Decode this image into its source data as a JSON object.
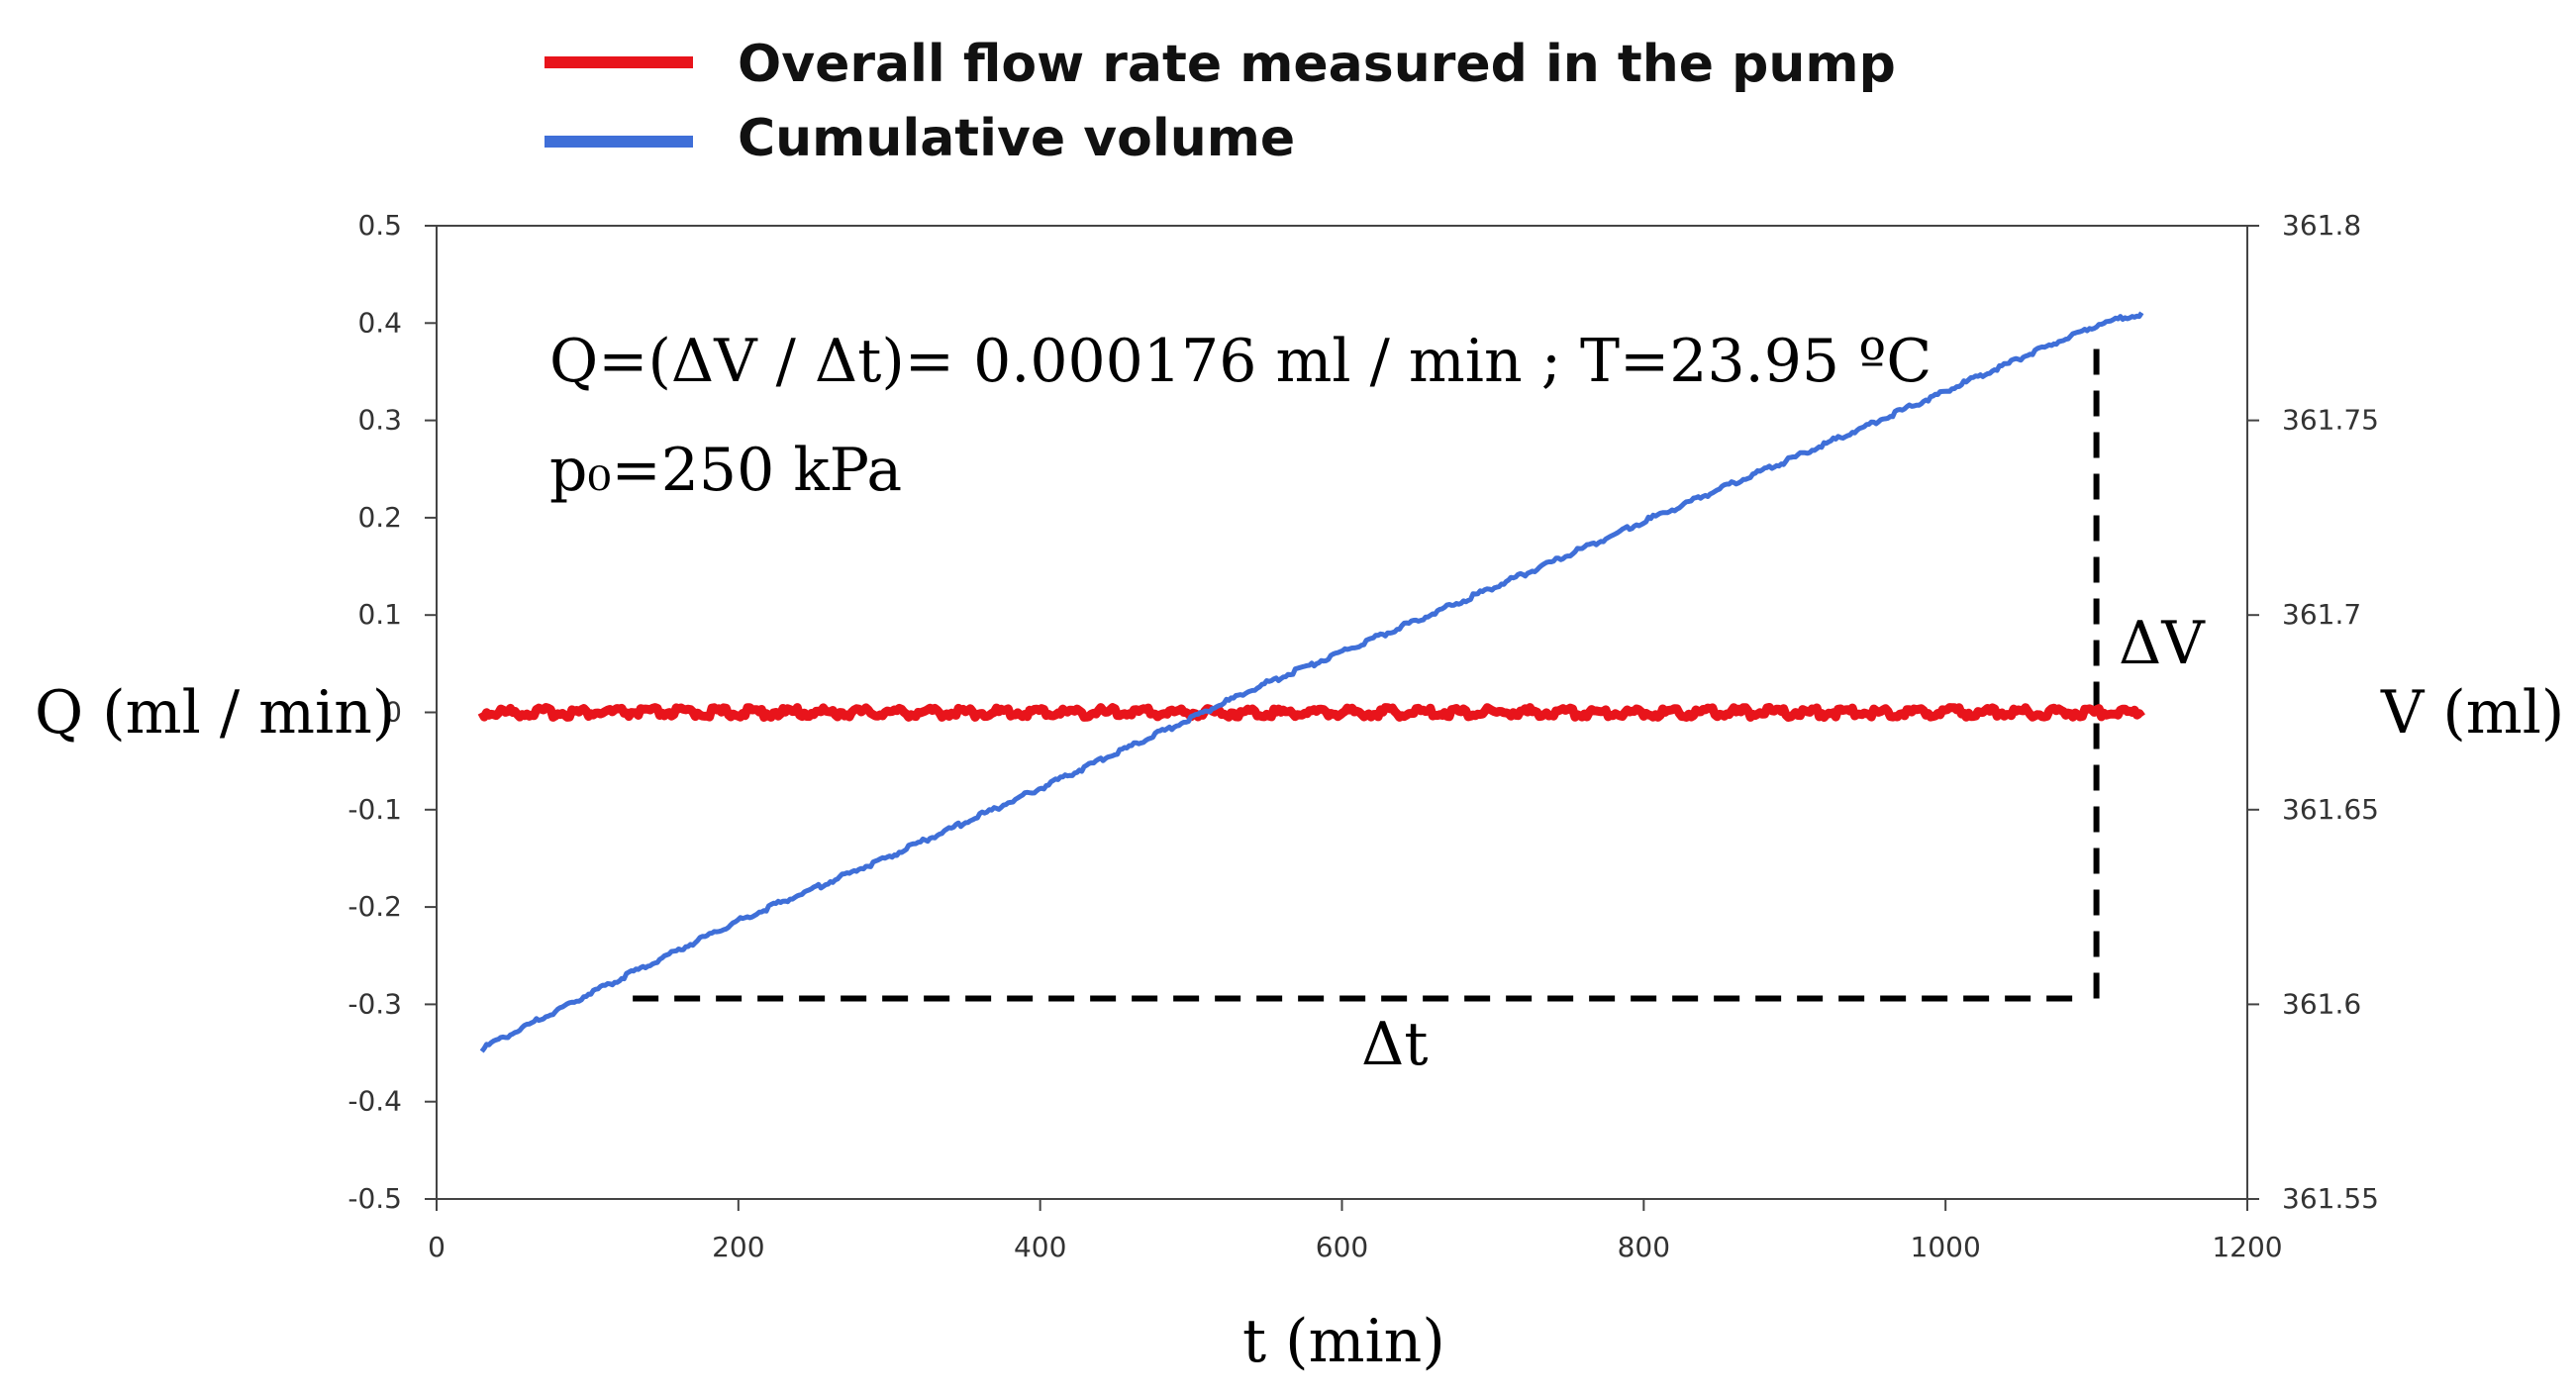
{
  "legend": [
    {
      "label": "Overall flow rate measured in the pump",
      "color": "#e8141b"
    },
    {
      "label": "Cumulative volume",
      "color": "#3f6fd8"
    }
  ],
  "annotations": {
    "formula": "Q=(ΔV / Δt)= 0.000176 ml / min   ;   T=23.95 ºC",
    "pressure": "p₀=250 kPa",
    "delta_v": "ΔV",
    "delta_t": "Δt"
  },
  "chart_data": {
    "type": "line",
    "xlabel": "t (min)",
    "ylabel_left": "Q (ml / min)",
    "ylabel_right": "V (ml)",
    "xlim": [
      0,
      1200
    ],
    "ylim_left": [
      -0.5,
      0.5
    ],
    "ylim_right": [
      361.55,
      361.8
    ],
    "x_ticks": [
      "0",
      "200",
      "400",
      "600",
      "800",
      "1000",
      "1200"
    ],
    "y_left_ticks": [
      "0.5",
      "0.4",
      "0.3",
      "0.2",
      "0.1",
      "0",
      "-0.1",
      "-0.2",
      "-0.3",
      "-0.4",
      "-0.5"
    ],
    "y_right_ticks": [
      "361.8",
      "361.75",
      "361.7",
      "361.65",
      "361.6",
      "361.55"
    ],
    "series": [
      {
        "name": "Overall flow rate measured in the pump",
        "axis": "left",
        "color": "#e8141b",
        "x": [
          30,
          100,
          200,
          300,
          400,
          500,
          600,
          700,
          800,
          900,
          1000,
          1100,
          1130
        ],
        "y": [
          0,
          0,
          0,
          0,
          0,
          0,
          0,
          0,
          0,
          0,
          0,
          0,
          0
        ]
      },
      {
        "name": "Cumulative volume",
        "axis": "right",
        "color": "#3f6fd8",
        "x": [
          30,
          100,
          200,
          300,
          400,
          500,
          550,
          600,
          700,
          800,
          900,
          1000,
          1100,
          1130
        ],
        "y": [
          361.5885,
          361.6025,
          361.6215,
          361.638,
          361.6555,
          361.6735,
          361.6825,
          361.6905,
          361.707,
          361.724,
          361.7405,
          361.7575,
          361.7745,
          361.7775
        ]
      }
    ],
    "guides": {
      "horizontal": {
        "x_from": 130,
        "x_to": 1100,
        "value_right": 361.6015
      },
      "vertical": {
        "x": 1100,
        "from_right": 361.6015,
        "to_right": 361.7745
      }
    }
  }
}
